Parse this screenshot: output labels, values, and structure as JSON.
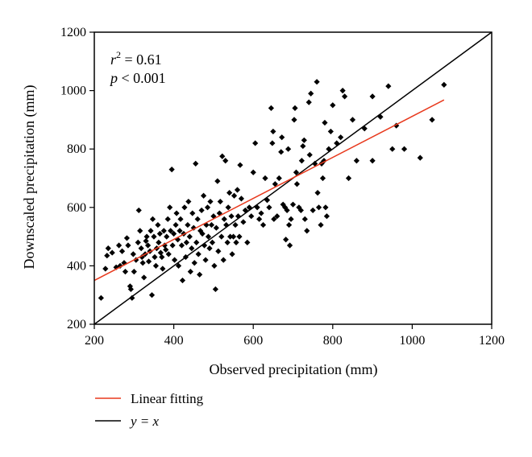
{
  "chart_data": {
    "type": "scatter",
    "xlabel": "Observed precipitation (mm)",
    "ylabel": "Downscaled precipitation (mm)",
    "xlim": [
      200,
      1200
    ],
    "ylim": [
      200,
      1200
    ],
    "xticks": [
      200,
      400,
      600,
      800,
      1000,
      1200
    ],
    "yticks": [
      200,
      400,
      600,
      800,
      1000,
      1200
    ],
    "annotations": {
      "r2_var": "r",
      "r2_sup": "2",
      "r2_rest": " = 0.61",
      "p_var": "p",
      "p_rest": " < 0.001"
    },
    "legend": {
      "position": "bottom-left",
      "items": [
        {
          "label": "Linear fitting",
          "color": "#e8391d"
        },
        {
          "label": "y = x",
          "color": "#000000"
        }
      ]
    },
    "series": [
      {
        "name": "points",
        "marker": "diamond",
        "color": "#000000",
        "points": [
          [
            217,
            290
          ],
          [
            228,
            390
          ],
          [
            232,
            435
          ],
          [
            235,
            460
          ],
          [
            245,
            445
          ],
          [
            255,
            395
          ],
          [
            262,
            470
          ],
          [
            265,
            400
          ],
          [
            270,
            450
          ],
          [
            275,
            410
          ],
          [
            278,
            380
          ],
          [
            282,
            495
          ],
          [
            285,
            470
          ],
          [
            290,
            330
          ],
          [
            292,
            320
          ],
          [
            295,
            290
          ],
          [
            298,
            440
          ],
          [
            300,
            380
          ],
          [
            305,
            420
          ],
          [
            310,
            480
          ],
          [
            312,
            590
          ],
          [
            315,
            520
          ],
          [
            318,
            460
          ],
          [
            320,
            430
          ],
          [
            322,
            410
          ],
          [
            325,
            360
          ],
          [
            328,
            440
          ],
          [
            330,
            485
          ],
          [
            332,
            500
          ],
          [
            335,
            470
          ],
          [
            337,
            415
          ],
          [
            340,
            450
          ],
          [
            342,
            520
          ],
          [
            345,
            300
          ],
          [
            347,
            560
          ],
          [
            350,
            500
          ],
          [
            352,
            430
          ],
          [
            355,
            400
          ],
          [
            357,
            460
          ],
          [
            360,
            540
          ],
          [
            362,
            480
          ],
          [
            365,
            510
          ],
          [
            367,
            445
          ],
          [
            370,
            430
          ],
          [
            372,
            390
          ],
          [
            375,
            520
          ],
          [
            377,
            470
          ],
          [
            380,
            455
          ],
          [
            382,
            500
          ],
          [
            385,
            560
          ],
          [
            387,
            440
          ],
          [
            390,
            600
          ],
          [
            392,
            520
          ],
          [
            395,
            730
          ],
          [
            397,
            470
          ],
          [
            400,
            510
          ],
          [
            402,
            420
          ],
          [
            405,
            540
          ],
          [
            407,
            580
          ],
          [
            410,
            490
          ],
          [
            412,
            400
          ],
          [
            415,
            520
          ],
          [
            417,
            560
          ],
          [
            420,
            470
          ],
          [
            422,
            350
          ],
          [
            425,
            510
          ],
          [
            427,
            600
          ],
          [
            430,
            430
          ],
          [
            432,
            480
          ],
          [
            435,
            540
          ],
          [
            437,
            620
          ],
          [
            440,
            500
          ],
          [
            442,
            380
          ],
          [
            445,
            460
          ],
          [
            447,
            580
          ],
          [
            450,
            530
          ],
          [
            452,
            410
          ],
          [
            455,
            750
          ],
          [
            457,
            480
          ],
          [
            460,
            560
          ],
          [
            462,
            440
          ],
          [
            465,
            370
          ],
          [
            467,
            520
          ],
          [
            470,
            590
          ],
          [
            472,
            510
          ],
          [
            475,
            640
          ],
          [
            477,
            470
          ],
          [
            480,
            420
          ],
          [
            482,
            540
          ],
          [
            485,
            600
          ],
          [
            487,
            500
          ],
          [
            490,
            460
          ],
          [
            492,
            620
          ],
          [
            495,
            540
          ],
          [
            497,
            480
          ],
          [
            500,
            570
          ],
          [
            502,
            400
          ],
          [
            505,
            320
          ],
          [
            507,
            530
          ],
          [
            510,
            690
          ],
          [
            512,
            450
          ],
          [
            515,
            580
          ],
          [
            517,
            620
          ],
          [
            520,
            500
          ],
          [
            522,
            775
          ],
          [
            525,
            420
          ],
          [
            527,
            560
          ],
          [
            530,
            760
          ],
          [
            532,
            540
          ],
          [
            535,
            480
          ],
          [
            537,
            600
          ],
          [
            540,
            650
          ],
          [
            542,
            500
          ],
          [
            545,
            570
          ],
          [
            547,
            440
          ],
          [
            550,
            500
          ],
          [
            552,
            640
          ],
          [
            555,
            540
          ],
          [
            557,
            480
          ],
          [
            560,
            660
          ],
          [
            562,
            570
          ],
          [
            565,
            500
          ],
          [
            567,
            745
          ],
          [
            570,
            630
          ],
          [
            575,
            550
          ],
          [
            580,
            590
          ],
          [
            585,
            480
          ],
          [
            590,
            600
          ],
          [
            595,
            570
          ],
          [
            600,
            720
          ],
          [
            605,
            820
          ],
          [
            610,
            600
          ],
          [
            615,
            560
          ],
          [
            620,
            580
          ],
          [
            625,
            540
          ],
          [
            630,
            700
          ],
          [
            635,
            625
          ],
          [
            640,
            600
          ],
          [
            645,
            940
          ],
          [
            648,
            820
          ],
          [
            650,
            860
          ],
          [
            652,
            560
          ],
          [
            655,
            680
          ],
          [
            660,
            570
          ],
          [
            665,
            700
          ],
          [
            670,
            790
          ],
          [
            672,
            840
          ],
          [
            675,
            610
          ],
          [
            680,
            600
          ],
          [
            682,
            490
          ],
          [
            685,
            590
          ],
          [
            688,
            800
          ],
          [
            690,
            540
          ],
          [
            692,
            470
          ],
          [
            695,
            560
          ],
          [
            700,
            610
          ],
          [
            703,
            900
          ],
          [
            705,
            940
          ],
          [
            708,
            720
          ],
          [
            710,
            680
          ],
          [
            715,
            600
          ],
          [
            720,
            590
          ],
          [
            722,
            760
          ],
          [
            725,
            810
          ],
          [
            728,
            830
          ],
          [
            730,
            560
          ],
          [
            735,
            520
          ],
          [
            740,
            960
          ],
          [
            742,
            780
          ],
          [
            745,
            990
          ],
          [
            750,
            590
          ],
          [
            755,
            750
          ],
          [
            760,
            1030
          ],
          [
            762,
            650
          ],
          [
            765,
            600
          ],
          [
            770,
            540
          ],
          [
            772,
            750
          ],
          [
            775,
            700
          ],
          [
            778,
            760
          ],
          [
            780,
            890
          ],
          [
            782,
            600
          ],
          [
            785,
            570
          ],
          [
            790,
            800
          ],
          [
            795,
            860
          ],
          [
            800,
            950
          ],
          [
            810,
            820
          ],
          [
            820,
            840
          ],
          [
            825,
            1000
          ],
          [
            830,
            980
          ],
          [
            840,
            700
          ],
          [
            850,
            900
          ],
          [
            860,
            760
          ],
          [
            880,
            870
          ],
          [
            900,
            760
          ],
          [
            920,
            910
          ],
          [
            940,
            1015
          ],
          [
            960,
            880
          ],
          [
            980,
            800
          ],
          [
            1020,
            770
          ],
          [
            1050,
            900
          ],
          [
            1080,
            1020
          ],
          [
            900,
            980
          ],
          [
            950,
            800
          ]
        ]
      }
    ],
    "fit_line": {
      "x": [
        200,
        1080
      ],
      "y": [
        350,
        968
      ]
    },
    "identity_line": {
      "x": [
        200,
        1200
      ],
      "y": [
        200,
        1200
      ]
    }
  }
}
